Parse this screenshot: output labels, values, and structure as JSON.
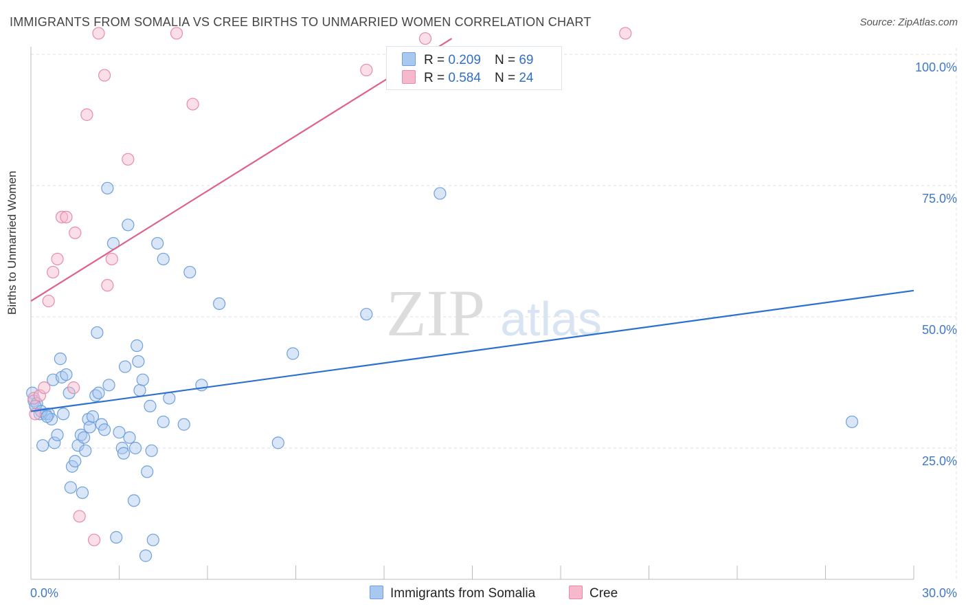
{
  "title": "IMMIGRANTS FROM SOMALIA VS CREE BIRTHS TO UNMARRIED WOMEN CORRELATION CHART",
  "source": "Source: ZipAtlas.com",
  "watermark": {
    "zip": "ZIP",
    "atlas": "atlas"
  },
  "legend": {
    "rows": [
      {
        "r_label": "R =",
        "r_value": "0.209",
        "n_label": "N =",
        "n_value": "69"
      },
      {
        "r_label": "R =",
        "r_value": "0.584",
        "n_label": "N =",
        "n_value": "24"
      }
    ]
  },
  "bottom_legend": {
    "series1": "Immigrants from Somalia",
    "series2": "Cree"
  },
  "colors": {
    "somalia_fill": "#a9c8f0",
    "somalia_stroke": "#6f9fdc",
    "somalia_line": "#2b6fd0",
    "cree_fill": "#f6b8cb",
    "cree_stroke": "#e88aa9",
    "cree_line": "#e0608a",
    "tick_label": "#3f78c9",
    "grid": "#d9dde3"
  },
  "chart_data": {
    "type": "scatter",
    "title": "IMMIGRANTS FROM SOMALIA VS CREE BIRTHS TO UNMARRIED WOMEN CORRELATION CHART",
    "xlabel": "",
    "ylabel": "Births to Unmarried Women",
    "xlim": [
      0,
      30
    ],
    "ylim": [
      0,
      100
    ],
    "x_tick_labels": [
      "0.0%",
      "30.0%"
    ],
    "y_ticks": [
      25,
      50,
      75,
      100
    ],
    "y_tick_labels": [
      "25.0%",
      "50.0%",
      "75.0%",
      "100.0%"
    ],
    "grid": true,
    "series": [
      {
        "name": "Immigrants from Somalia",
        "r": 0.209,
        "n": 69,
        "trend": {
          "x": [
            0,
            30
          ],
          "y": [
            32.0,
            55.0
          ]
        },
        "points": [
          [
            0.05,
            35.5
          ],
          [
            0.1,
            34.0
          ],
          [
            0.2,
            33.5
          ],
          [
            0.3,
            31.5
          ],
          [
            0.4,
            25.5
          ],
          [
            0.5,
            31.5
          ],
          [
            0.6,
            31.5
          ],
          [
            0.7,
            30.5
          ],
          [
            0.75,
            38.0
          ],
          [
            0.8,
            26.0
          ],
          [
            0.9,
            27.5
          ],
          [
            1.0,
            42.0
          ],
          [
            1.05,
            38.5
          ],
          [
            1.1,
            31.5
          ],
          [
            1.2,
            39.0
          ],
          [
            1.3,
            35.5
          ],
          [
            1.35,
            17.5
          ],
          [
            1.4,
            21.5
          ],
          [
            1.5,
            22.5
          ],
          [
            1.6,
            25.5
          ],
          [
            1.7,
            27.5
          ],
          [
            1.75,
            16.5
          ],
          [
            1.8,
            27.0
          ],
          [
            1.85,
            24.5
          ],
          [
            1.95,
            30.5
          ],
          [
            2.0,
            29.0
          ],
          [
            2.1,
            31.0
          ],
          [
            2.2,
            35.0
          ],
          [
            2.25,
            47.0
          ],
          [
            2.3,
            35.5
          ],
          [
            2.4,
            29.5
          ],
          [
            2.5,
            28.5
          ],
          [
            2.6,
            74.5
          ],
          [
            2.65,
            37.0
          ],
          [
            2.8,
            64.0
          ],
          [
            2.9,
            8.0
          ],
          [
            3.0,
            28.0
          ],
          [
            3.1,
            25.0
          ],
          [
            3.15,
            24.0
          ],
          [
            3.2,
            40.5
          ],
          [
            3.3,
            67.5
          ],
          [
            3.35,
            27.0
          ],
          [
            3.5,
            15.0
          ],
          [
            3.55,
            25.0
          ],
          [
            3.6,
            44.5
          ],
          [
            3.65,
            41.5
          ],
          [
            3.7,
            36.0
          ],
          [
            3.8,
            38.0
          ],
          [
            3.9,
            4.5
          ],
          [
            3.95,
            20.5
          ],
          [
            4.05,
            33.0
          ],
          [
            4.1,
            24.5
          ],
          [
            4.15,
            7.5
          ],
          [
            4.3,
            64.0
          ],
          [
            4.5,
            61.0
          ],
          [
            4.5,
            30.0
          ],
          [
            4.7,
            34.5
          ],
          [
            5.2,
            29.5
          ],
          [
            5.4,
            58.5
          ],
          [
            5.8,
            37.0
          ],
          [
            6.4,
            52.5
          ],
          [
            8.4,
            26.0
          ],
          [
            8.9,
            43.0
          ],
          [
            11.4,
            50.5
          ],
          [
            13.9,
            73.5
          ],
          [
            27.9,
            30.0
          ],
          [
            0.15,
            33.0
          ],
          [
            0.35,
            32.0
          ],
          [
            0.55,
            31.0
          ]
        ]
      },
      {
        "name": "Cree",
        "r": 0.584,
        "n": 24,
        "trend": {
          "x": [
            0,
            14.3
          ],
          "y": [
            53.0,
            103.0
          ]
        },
        "points": [
          [
            0.1,
            34.5
          ],
          [
            0.15,
            31.5
          ],
          [
            0.3,
            35.0
          ],
          [
            0.45,
            36.5
          ],
          [
            0.6,
            53.0
          ],
          [
            0.75,
            58.5
          ],
          [
            0.9,
            61.0
          ],
          [
            1.05,
            69.0
          ],
          [
            1.2,
            69.0
          ],
          [
            1.45,
            36.5
          ],
          [
            1.5,
            66.0
          ],
          [
            1.65,
            12.0
          ],
          [
            1.9,
            88.5
          ],
          [
            2.15,
            7.5
          ],
          [
            2.3,
            104.0
          ],
          [
            2.5,
            96.0
          ],
          [
            2.6,
            56.0
          ],
          [
            2.75,
            61.0
          ],
          [
            3.3,
            80.0
          ],
          [
            4.95,
            104.0
          ],
          [
            5.5,
            90.5
          ],
          [
            11.4,
            97.0
          ],
          [
            13.4,
            103.0
          ],
          [
            20.2,
            104.0
          ]
        ]
      }
    ]
  }
}
